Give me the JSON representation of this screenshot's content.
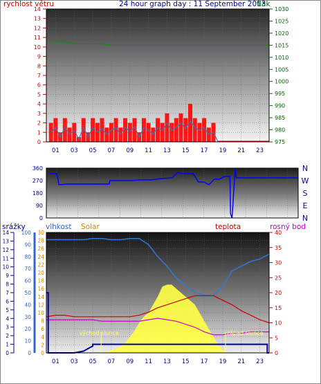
{
  "header": {
    "left_label": "rychlost větru",
    "title": "24 hour graph day : 11 September 2013",
    "right_label": "tlak"
  },
  "colors": {
    "wind_left_axis": "#cc0000",
    "pressure_axis": "#006600",
    "title": "#000099",
    "direction_axis": "#000099",
    "rain_axis": "#000099",
    "humidity_axis": "#3366cc",
    "solar": "#cc8800",
    "temperature": "#cc0000",
    "dew_point": "#cc00cc",
    "wind_gust": "#ff0000",
    "wind_avg": "#3377bb",
    "pressure_line": "#009900",
    "direction_line": "#0000ff",
    "humidity_line": "#3377dd",
    "solar_fill": "#ffff44",
    "rain_line": "#000099",
    "frame": "#000000"
  },
  "chart_data": [
    {
      "type": "line",
      "name_label": "wind-and-pressure",
      "x_ticks": [
        "01",
        "03",
        "05",
        "07",
        "09",
        "11",
        "13",
        "15",
        "17",
        "19",
        "21",
        "23"
      ],
      "xlim": [
        0,
        24
      ],
      "left_axis": {
        "label": "rychlost větru",
        "ylim": [
          0,
          14
        ],
        "ticks": [
          0,
          1,
          2,
          3,
          4,
          5,
          6,
          7,
          8,
          9,
          10,
          11,
          12,
          13,
          14
        ]
      },
      "right_axis": {
        "label": "tlak",
        "ylim": [
          975,
          1030
        ],
        "ticks": [
          975,
          980,
          985,
          990,
          995,
          1000,
          1005,
          1010,
          1015,
          1020,
          1025,
          1030
        ]
      },
      "series": [
        {
          "name": "gust",
          "axis": "left",
          "x": [
            0.5,
            1,
            1.5,
            2,
            2.5,
            3,
            3.5,
            4,
            4.5,
            5,
            5.5,
            6,
            6.5,
            7,
            7.5,
            8,
            8.5,
            9,
            9.5,
            10,
            10.5,
            11,
            11.5,
            12,
            12.5,
            13,
            13.5,
            14,
            14.5,
            15,
            15.5,
            16,
            16.5,
            17,
            17.5,
            18,
            18.5
          ],
          "y": [
            2,
            2.5,
            1,
            2.5,
            1.5,
            2,
            0.5,
            2.5,
            1,
            2.5,
            2,
            2.5,
            1.5,
            2,
            2.5,
            1.5,
            2.5,
            2,
            2.5,
            1,
            2.5,
            2,
            1.5,
            2.5,
            2,
            3,
            2,
            2.5,
            3,
            2.5,
            4,
            2.5,
            2,
            2.5,
            1.5,
            2,
            0
          ]
        },
        {
          "name": "average",
          "axis": "left",
          "x": [
            0.5,
            1,
            1.5,
            2,
            2.5,
            3,
            3.5,
            4,
            4.5,
            5,
            5.5,
            6,
            6.5,
            7,
            7.5,
            8,
            8.5,
            9,
            9.5,
            10,
            10.5,
            11,
            11.5,
            12,
            12.5,
            13,
            13.5,
            14,
            14.5,
            15,
            15.5,
            16,
            16.5,
            17,
            17.5,
            18,
            18.5
          ],
          "y": [
            1,
            1.5,
            0.5,
            1.5,
            0.8,
            1.2,
            0.3,
            1.5,
            0.5,
            1.5,
            1,
            1.4,
            0.8,
            1.2,
            1.5,
            0.8,
            1.5,
            1.1,
            1.6,
            0.5,
            1.5,
            1.2,
            0.8,
            1.5,
            1.2,
            2,
            1.2,
            1.5,
            2,
            1.4,
            2.2,
            1.5,
            1.2,
            1.5,
            0.8,
            1,
            0
          ]
        },
        {
          "name": "pressure",
          "axis": "right",
          "x": [
            0.5,
            1,
            2,
            3,
            4,
            5,
            6,
            7,
            8,
            9,
            10,
            11,
            12,
            13,
            14,
            15,
            16,
            17,
            18,
            19,
            20,
            21,
            22,
            23,
            24
          ],
          "y": [
            1016.5,
            1016.5,
            1016.5,
            1015.5,
            1015.5,
            1015.5,
            1015.5,
            1015,
            1015,
            1015,
            1015,
            1015,
            1015,
            1015,
            1015,
            1015,
            1015,
            1015,
            1015,
            1015,
            1015,
            1015,
            1015,
            1015,
            1015
          ]
        }
      ]
    },
    {
      "type": "line",
      "name_label": "wind-direction",
      "xlim": [
        0,
        24
      ],
      "left_axis": {
        "ylim": [
          0,
          360
        ],
        "ticks": [
          0,
          90,
          180,
          270,
          360
        ]
      },
      "right_axis": {
        "ticks": [
          "N",
          "E",
          "S",
          "W",
          "N"
        ]
      },
      "series": [
        {
          "name": "direction",
          "x": [
            0.3,
            1,
            1.2,
            2,
            3,
            4,
            5,
            6,
            6.05,
            7,
            8,
            9,
            10,
            11,
            12,
            12.5,
            13,
            14,
            14.5,
            15,
            15.5,
            16,
            16.5,
            17,
            17.5,
            17.55,
            17.7,
            18,
            18.1,
            19,
            20,
            21,
            22,
            23,
            24
          ],
          "y": [
            320,
            320,
            240,
            245,
            245,
            245,
            245,
            245,
            270,
            270,
            270,
            275,
            275,
            285,
            290,
            330,
            320,
            320,
            260,
            260,
            240,
            280,
            280,
            300,
            300,
            30,
            0,
            360,
            290,
            290,
            290,
            290,
            290,
            290,
            290
          ]
        }
      ]
    },
    {
      "type": "area",
      "name_label": "rain-humidity-solar-temp-dew",
      "x_ticks": [
        "01",
        "03",
        "05",
        "07",
        "09",
        "11",
        "13",
        "15",
        "17",
        "19",
        "21",
        "23"
      ],
      "xlim": [
        0,
        24
      ],
      "headers": {
        "rain": "srážky",
        "humidity": "vlhkost",
        "solar": "Solar",
        "temperature": "teplota",
        "dew_point": "rosný bod"
      },
      "annotations": [
        {
          "text": "východ slunce",
          "x": 5.9
        },
        {
          "text": "západ slunce",
          "x": 19.3
        }
      ],
      "rain_axis": {
        "ylim": [
          0,
          14
        ],
        "ticks": [
          0,
          1,
          2,
          3,
          4,
          5,
          6,
          7,
          8,
          9,
          10,
          11,
          12,
          13,
          14
        ]
      },
      "humidity_axis": {
        "ylim": [
          0,
          100
        ],
        "ticks": [
          0,
          10,
          20,
          30,
          40,
          50,
          60,
          70,
          80,
          90,
          100
        ]
      },
      "solar_axis": {
        "ylim": [
          0,
          30
        ],
        "ticks": [
          0,
          2,
          4,
          6,
          8,
          10,
          12,
          14,
          16,
          18,
          20,
          22,
          24,
          26,
          28,
          30
        ]
      },
      "temp_axis": {
        "ylim": [
          0,
          40
        ],
        "ticks": [
          0,
          5,
          10,
          15,
          20,
          25,
          30,
          35,
          40
        ]
      },
      "series": [
        {
          "name": "humidity",
          "axis": "humidity",
          "x": [
            0,
            1,
            2,
            3,
            4,
            5,
            6,
            7,
            8,
            9,
            10,
            11,
            12,
            13,
            14,
            15,
            16,
            17,
            18,
            19,
            20,
            21,
            22,
            23,
            24
          ],
          "y": [
            94,
            94,
            94,
            94,
            94,
            95,
            95,
            94,
            94,
            95,
            95,
            90,
            80,
            72,
            62,
            56,
            50,
            48,
            48,
            55,
            68,
            72,
            76,
            78,
            82
          ]
        },
        {
          "name": "temperature",
          "axis": "temp",
          "x": [
            0,
            1,
            2,
            3,
            4,
            5,
            6,
            7,
            8,
            9,
            10,
            11,
            12,
            13,
            14,
            15,
            16,
            17,
            18,
            19,
            20,
            21,
            22,
            23,
            24
          ],
          "y": [
            12,
            12.5,
            12.5,
            12,
            12,
            12,
            12,
            12,
            12,
            12,
            12.5,
            13.5,
            15,
            16,
            17,
            18,
            19,
            19,
            19,
            17.5,
            16,
            14,
            12.5,
            11,
            10
          ]
        },
        {
          "name": "dew_point",
          "axis": "temp",
          "x": [
            0,
            1,
            2,
            3,
            4,
            5,
            6,
            7,
            8,
            9,
            10,
            11,
            12,
            13,
            14,
            15,
            16,
            17,
            18,
            19,
            20,
            21,
            22,
            23,
            24
          ],
          "y": [
            11,
            11,
            11,
            11,
            11,
            11,
            10.5,
            10.5,
            10.5,
            10.5,
            10.5,
            11,
            11.5,
            11,
            10.5,
            9.5,
            8.5,
            7,
            6,
            6,
            6.5,
            6.5,
            7,
            7,
            7
          ]
        },
        {
          "name": "solar",
          "axis": "solar",
          "x": [
            0,
            5.9,
            6.5,
            7,
            7.5,
            8,
            8.5,
            9,
            9.5,
            10,
            10.5,
            11,
            11.5,
            12,
            12.5,
            13,
            13.5,
            14,
            14.5,
            15,
            15.5,
            16,
            16.5,
            17,
            17.5,
            18,
            18.5,
            19.3,
            24
          ],
          "y": [
            0,
            0,
            0.3,
            0.6,
            1,
            1.5,
            2.5,
            4,
            5.5,
            7.5,
            9,
            10,
            12,
            14,
            16.5,
            17,
            17,
            16,
            15,
            14,
            13,
            12,
            10,
            8,
            6,
            4,
            2,
            0,
            0
          ]
        },
        {
          "name": "rain",
          "axis": "rain",
          "x": [
            0,
            0.2,
            0.2,
            3,
            4,
            4.5,
            5,
            5,
            6,
            8,
            10,
            12,
            14,
            16,
            18,
            20,
            22,
            23.8,
            23.8,
            24
          ],
          "y": [
            7,
            7,
            0,
            0,
            0.2,
            0.5,
            0.8,
            1,
            1,
            1,
            1,
            1,
            1,
            1,
            1,
            1,
            1,
            1,
            0,
            0
          ]
        }
      ]
    }
  ]
}
